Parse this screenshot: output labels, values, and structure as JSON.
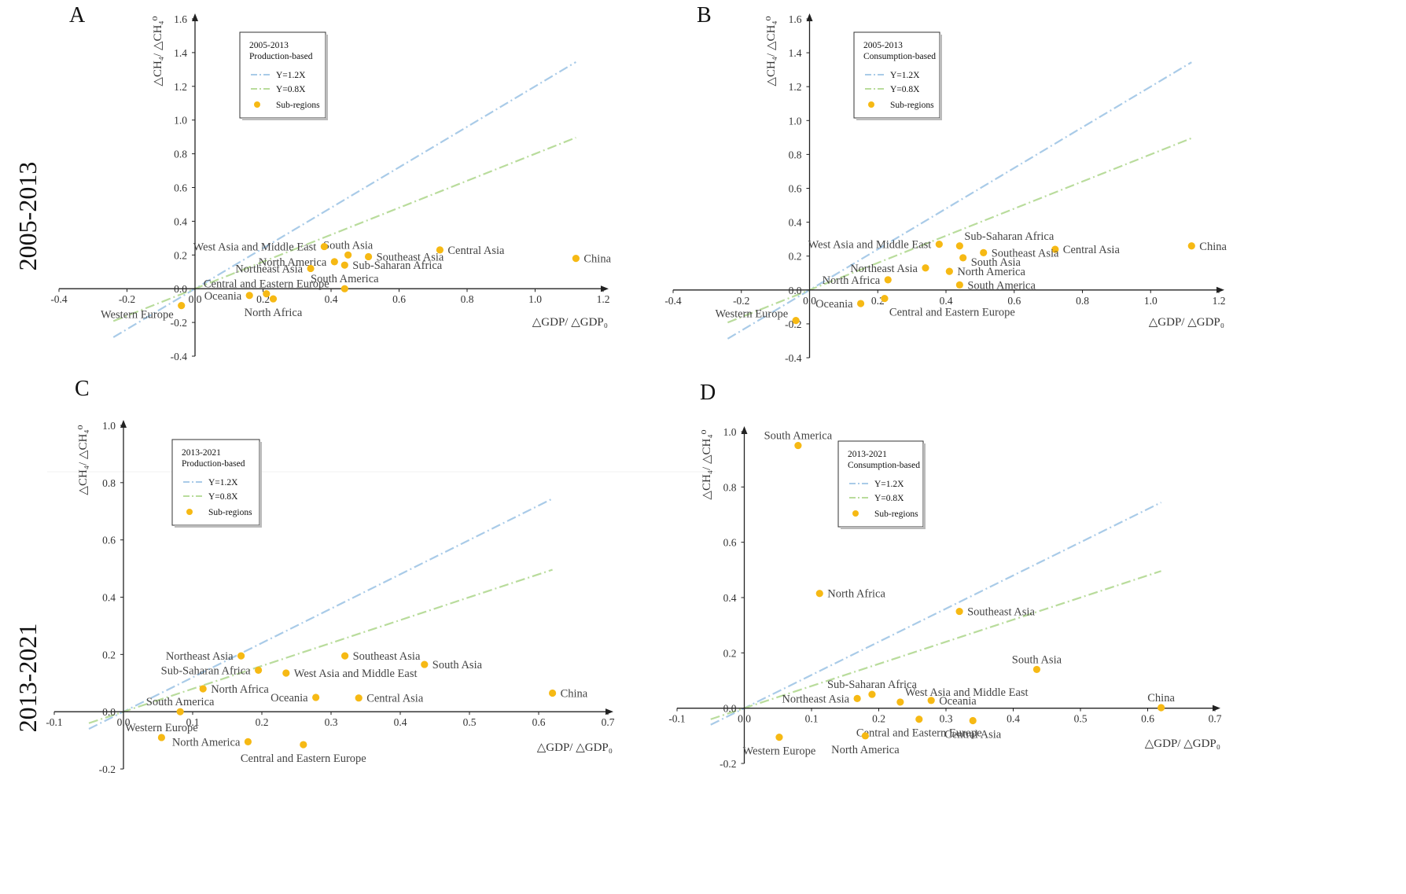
{
  "row_labels": [
    "2005-2013",
    "2013-2021"
  ],
  "chart_data": [
    {
      "panel": "A",
      "type": "scatter",
      "legend": {
        "title": "2005-2013",
        "subtitle": "Production-based",
        "entries": [
          "Y=1.2X",
          "Y=0.8X",
          "Sub-regions"
        ],
        "placement": "top-left"
      },
      "xlabel": "△GDP/ △GDP₀",
      "ylabel": "△CH₄/ △CH₄⁰",
      "xlim": [
        -0.4,
        1.2
      ],
      "ylim": [
        -0.4,
        1.6
      ],
      "xticks": [
        -0.4,
        -0.2,
        0.0,
        0.2,
        0.4,
        0.6,
        0.8,
        1.0,
        1.2
      ],
      "yticks": [
        -0.4,
        -0.2,
        0.0,
        0.2,
        0.4,
        0.6,
        0.8,
        1.0,
        1.2,
        1.4,
        1.6
      ],
      "xtick_labels": [
        "-0.4",
        "-0.2",
        "0.0",
        "0.2",
        "0.4",
        "0.6",
        "0.8",
        "1.0",
        "1.2"
      ],
      "ytick_labels": [
        "-0.4",
        "-0.2",
        "0.0",
        "0.2",
        "0.4",
        "0.6",
        "0.8",
        "1.0",
        "1.2",
        "1.4",
        "1.6"
      ],
      "lines": [
        {
          "name": "Y=1.2X",
          "slope": 1.2,
          "x_range": [
            -0.24,
            1.12
          ],
          "color": "#a9cbe8"
        },
        {
          "name": "Y=0.8X",
          "slope": 0.8,
          "x_range": [
            -0.24,
            1.12
          ],
          "color": "#b9dc9c"
        }
      ],
      "points": [
        {
          "label": "China",
          "x": 1.12,
          "y": 0.18,
          "anchor": "right"
        },
        {
          "label": "Central Asia",
          "x": 0.72,
          "y": 0.23,
          "anchor": "right"
        },
        {
          "label": "Southeast Asia",
          "x": 0.51,
          "y": 0.19,
          "anchor": "right"
        },
        {
          "label": "South Asia",
          "x": 0.45,
          "y": 0.2,
          "anchor": "above"
        },
        {
          "label": "West Asia and Middle East",
          "x": 0.38,
          "y": 0.25,
          "anchor": "left"
        },
        {
          "label": "North America",
          "x": 0.41,
          "y": 0.16,
          "anchor": "left"
        },
        {
          "label": "Sub-Saharan Africa",
          "x": 0.44,
          "y": 0.14,
          "anchor": "right"
        },
        {
          "label": "Northeast Asia",
          "x": 0.34,
          "y": 0.12,
          "anchor": "left"
        },
        {
          "label": "Central and Eastern Europe",
          "x": 0.21,
          "y": -0.03,
          "anchor": "above"
        },
        {
          "label": "South America",
          "x": 0.44,
          "y": 0.0,
          "anchor": "above"
        },
        {
          "label": "Oceania",
          "x": 0.16,
          "y": -0.04,
          "anchor": "left"
        },
        {
          "label": "North Africa",
          "x": 0.23,
          "y": -0.06,
          "anchor": "below"
        },
        {
          "label": "Western Europe",
          "x": -0.04,
          "y": -0.1,
          "anchor": "left-below"
        }
      ]
    },
    {
      "panel": "B",
      "type": "scatter",
      "legend": {
        "title": "2005-2013",
        "subtitle": "Consumption-based",
        "entries": [
          "Y=1.2X",
          "Y=0.8X",
          "Sub-regions"
        ],
        "placement": "top-left"
      },
      "xlabel": "△GDP/ △GDP₀",
      "ylabel": "△CH₄/ △CH₄⁰",
      "xlim": [
        -0.4,
        1.2
      ],
      "ylim": [
        -0.4,
        1.6
      ],
      "xticks": [
        -0.4,
        -0.2,
        0.0,
        0.2,
        0.4,
        0.6,
        0.8,
        1.0,
        1.2
      ],
      "yticks": [
        -0.4,
        -0.2,
        0.0,
        0.2,
        0.4,
        0.6,
        0.8,
        1.0,
        1.2,
        1.4,
        1.6
      ],
      "xtick_labels": [
        "-0.4",
        "-0.2",
        "0.0",
        "0.2",
        "0.4",
        "0.6",
        "0.8",
        "1.0",
        "1.2"
      ],
      "ytick_labels": [
        "-0.4",
        "-0.2",
        "0.0",
        "0.2",
        "0.4",
        "0.6",
        "0.8",
        "1.0",
        "1.2",
        "1.4",
        "1.6"
      ],
      "lines": [
        {
          "name": "Y=1.2X",
          "slope": 1.2,
          "x_range": [
            -0.24,
            1.12
          ],
          "color": "#a9cbe8"
        },
        {
          "name": "Y=0.8X",
          "slope": 0.8,
          "x_range": [
            -0.24,
            1.12
          ],
          "color": "#b9dc9c"
        }
      ],
      "points": [
        {
          "label": "China",
          "x": 1.12,
          "y": 0.26,
          "anchor": "right"
        },
        {
          "label": "Central Asia",
          "x": 0.72,
          "y": 0.24,
          "anchor": "right"
        },
        {
          "label": "Southeast Asia",
          "x": 0.51,
          "y": 0.22,
          "anchor": "right"
        },
        {
          "label": "Sub-Saharan Africa",
          "x": 0.44,
          "y": 0.26,
          "anchor": "above-right"
        },
        {
          "label": "West Asia and Middle East",
          "x": 0.38,
          "y": 0.27,
          "anchor": "left"
        },
        {
          "label": "South Asia",
          "x": 0.45,
          "y": 0.19,
          "anchor": "right-below"
        },
        {
          "label": "Northeast Asia",
          "x": 0.34,
          "y": 0.13,
          "anchor": "left"
        },
        {
          "label": "North America",
          "x": 0.41,
          "y": 0.11,
          "anchor": "right"
        },
        {
          "label": "North Africa",
          "x": 0.23,
          "y": 0.06,
          "anchor": "left"
        },
        {
          "label": "South America",
          "x": 0.44,
          "y": 0.03,
          "anchor": "right"
        },
        {
          "label": "Oceania",
          "x": 0.15,
          "y": -0.08,
          "anchor": "left"
        },
        {
          "label": "Central and Eastern Europe",
          "x": 0.22,
          "y": -0.05,
          "anchor": "below-right"
        },
        {
          "label": "Western Europe",
          "x": -0.04,
          "y": -0.18,
          "anchor": "left-above"
        }
      ]
    },
    {
      "panel": "C",
      "type": "scatter",
      "legend": {
        "title": "2013-2021",
        "subtitle": "Production-based",
        "entries": [
          "Y=1.2X",
          "Y=0.8X",
          "Sub-regions"
        ],
        "placement": "top-left"
      },
      "xlabel": "△GDP/ △GDP₀",
      "ylabel": "△CH₄/ △CH₄⁰",
      "xlim": [
        -0.1,
        0.7
      ],
      "ylim": [
        -0.2,
        1.0
      ],
      "xticks": [
        -0.1,
        0.0,
        0.1,
        0.2,
        0.3,
        0.4,
        0.5,
        0.6,
        0.7
      ],
      "yticks": [
        -0.2,
        0.0,
        0.2,
        0.4,
        0.6,
        0.8,
        1.0
      ],
      "xtick_labels": [
        "-0.1",
        "0.0",
        "0.1",
        "0.2",
        "0.3",
        "0.4",
        "0.5",
        "0.6",
        "0.7"
      ],
      "ytick_labels": [
        "-0.2",
        "0.0",
        "0.2",
        "0.4",
        "0.6",
        "0.8",
        "1.0"
      ],
      "lines": [
        {
          "name": "Y=1.2X",
          "slope": 1.2,
          "x_range": [
            -0.05,
            0.62
          ],
          "color": "#a9cbe8"
        },
        {
          "name": "Y=0.8X",
          "slope": 0.8,
          "x_range": [
            -0.05,
            0.62
          ],
          "color": "#b9dc9c"
        }
      ],
      "points": [
        {
          "label": "China",
          "x": 0.62,
          "y": 0.065,
          "anchor": "right"
        },
        {
          "label": "South Asia",
          "x": 0.435,
          "y": 0.165,
          "anchor": "right"
        },
        {
          "label": "Southeast Asia",
          "x": 0.32,
          "y": 0.195,
          "anchor": "right"
        },
        {
          "label": "West Asia and Middle East",
          "x": 0.235,
          "y": 0.135,
          "anchor": "right"
        },
        {
          "label": "Northeast Asia",
          "x": 0.17,
          "y": 0.195,
          "anchor": "left"
        },
        {
          "label": "Sub-Saharan Africa",
          "x": 0.195,
          "y": 0.145,
          "anchor": "left"
        },
        {
          "label": "North Africa",
          "x": 0.115,
          "y": 0.08,
          "anchor": "right"
        },
        {
          "label": "Oceania",
          "x": 0.278,
          "y": 0.05,
          "anchor": "left"
        },
        {
          "label": "Central Asia",
          "x": 0.34,
          "y": 0.048,
          "anchor": "right"
        },
        {
          "label": "South America",
          "x": 0.082,
          "y": 0.0,
          "anchor": "above"
        },
        {
          "label": "Western Europe",
          "x": 0.055,
          "y": -0.09,
          "anchor": "above"
        },
        {
          "label": "North America",
          "x": 0.18,
          "y": -0.105,
          "anchor": "left"
        },
        {
          "label": "Central and Eastern Europe",
          "x": 0.26,
          "y": -0.115,
          "anchor": "below"
        }
      ]
    },
    {
      "panel": "D",
      "type": "scatter",
      "legend": {
        "title": "2013-2021",
        "subtitle": "Consumption-based",
        "entries": [
          "Y=1.2X",
          "Y=0.8X",
          "Sub-regions"
        ],
        "placement": "top-center"
      },
      "xlabel": "△GDP/ △GDP₀",
      "ylabel": "△CH₄/ △CH₄⁰",
      "xlim": [
        -0.1,
        0.7
      ],
      "ylim": [
        -0.2,
        1.0
      ],
      "xticks": [
        -0.1,
        0.0,
        0.1,
        0.2,
        0.3,
        0.4,
        0.5,
        0.6,
        0.7
      ],
      "yticks": [
        -0.2,
        0.0,
        0.2,
        0.4,
        0.6,
        0.8,
        1.0
      ],
      "xtick_labels": [
        "-0.1",
        "0.0",
        "0.1",
        "0.2",
        "0.3",
        "0.4",
        "0.5",
        "0.6",
        "0.7"
      ],
      "ytick_labels": [
        "-0.2",
        "0.0",
        "0.2",
        "0.4",
        "0.6",
        "0.8",
        "1.0"
      ],
      "lines": [
        {
          "name": "Y=1.2X",
          "slope": 1.2,
          "x_range": [
            -0.05,
            0.62
          ],
          "color": "#a9cbe8"
        },
        {
          "name": "Y=0.8X",
          "slope": 0.8,
          "x_range": [
            -0.05,
            0.62
          ],
          "color": "#b9dc9c"
        }
      ],
      "points": [
        {
          "label": "South America",
          "x": 0.08,
          "y": 0.95,
          "anchor": "above"
        },
        {
          "label": "North Africa",
          "x": 0.112,
          "y": 0.415,
          "anchor": "right"
        },
        {
          "label": "Southeast Asia",
          "x": 0.32,
          "y": 0.35,
          "anchor": "right"
        },
        {
          "label": "South Asia",
          "x": 0.435,
          "y": 0.14,
          "anchor": "above"
        },
        {
          "label": "Sub-Saharan Africa",
          "x": 0.19,
          "y": 0.05,
          "anchor": "above"
        },
        {
          "label": "Northeast Asia",
          "x": 0.168,
          "y": 0.035,
          "anchor": "left"
        },
        {
          "label": "West Asia and Middle East",
          "x": 0.232,
          "y": 0.022,
          "anchor": "above-right"
        },
        {
          "label": "Oceania",
          "x": 0.278,
          "y": 0.028,
          "anchor": "right"
        },
        {
          "label": "China",
          "x": 0.62,
          "y": 0.002,
          "anchor": "above"
        },
        {
          "label": "Central and Eastern Europe",
          "x": 0.26,
          "y": -0.04,
          "anchor": "below"
        },
        {
          "label": "Central Asia",
          "x": 0.34,
          "y": -0.045,
          "anchor": "below"
        },
        {
          "label": "Western Europe",
          "x": 0.052,
          "y": -0.105,
          "anchor": "below"
        },
        {
          "label": "North America",
          "x": 0.18,
          "y": -0.1,
          "anchor": "below"
        }
      ]
    }
  ],
  "colors": {
    "point": "#f6b914",
    "axis": "#222222",
    "line_12": "#a9cbe8",
    "line_08": "#b9dc9c"
  }
}
